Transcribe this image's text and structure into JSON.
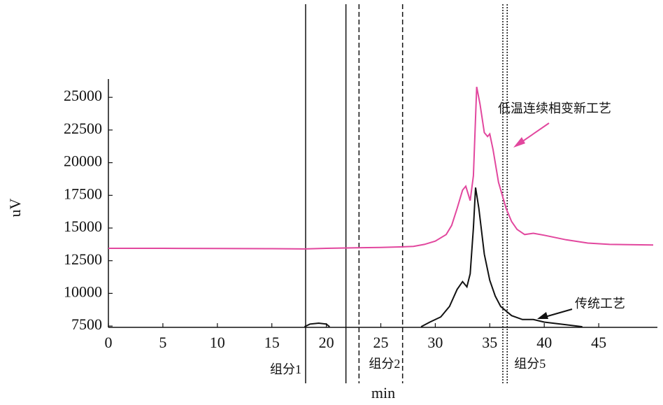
{
  "chart_data": {
    "type": "line",
    "x_label": "min",
    "y_label": "uV",
    "xlim": [
      0,
      50
    ],
    "ylim": [
      7400,
      26400
    ],
    "xticks": [
      0,
      5,
      10,
      15,
      20,
      25,
      30,
      35,
      40,
      45
    ],
    "yticks": [
      7500,
      10000,
      12500,
      15000,
      17500,
      20000,
      22500,
      25000
    ],
    "series": [
      {
        "name": "低温连续相变新工艺",
        "color": "#e2479e",
        "x": [
          0,
          5,
          10,
          15,
          18,
          20,
          25,
          27,
          28,
          29,
          30,
          31,
          31.5,
          32,
          32.5,
          32.8,
          33.2,
          33.5,
          33.8,
          34.1,
          34.5,
          34.8,
          35.0,
          35.3,
          35.8,
          36.5,
          37,
          37.5,
          38.2,
          39,
          40,
          42,
          44,
          46,
          50
        ],
        "values": [
          13450,
          13450,
          13430,
          13420,
          13400,
          13450,
          13520,
          13560,
          13600,
          13750,
          14000,
          14500,
          15200,
          16500,
          17900,
          18200,
          17100,
          19000,
          25800,
          24500,
          22300,
          22000,
          22200,
          21000,
          18500,
          16500,
          15500,
          14900,
          14500,
          14600,
          14450,
          14100,
          13850,
          13750,
          13700
        ]
      },
      {
        "name": "传统工艺",
        "color": "#111111",
        "x": [
          18,
          18.5,
          19.3,
          20,
          20.3,
          21,
          28.7,
          29.5,
          30.5,
          31.3,
          32,
          32.5,
          32.9,
          33.2,
          33.5,
          33.7,
          34.0,
          34.5,
          35.0,
          35.5,
          36,
          37,
          38,
          39,
          40,
          42,
          43.5
        ],
        "values": [
          7450,
          7650,
          7720,
          7650,
          7450,
          null,
          7450,
          7800,
          8200,
          9000,
          10300,
          10900,
          10500,
          11500,
          15000,
          18100,
          16500,
          13000,
          11000,
          9800,
          9000,
          8300,
          8000,
          8000,
          7800,
          7600,
          7450
        ]
      }
    ],
    "markers": [
      {
        "label": "组分1",
        "style": "solid",
        "x": [
          18.1,
          21.8
        ]
      },
      {
        "label": "组分2",
        "style": "dashed",
        "x": [
          23.0,
          27.0
        ]
      },
      {
        "label": "组分5",
        "style": "dotted",
        "x": [
          36.2,
          36.6
        ]
      }
    ]
  }
}
